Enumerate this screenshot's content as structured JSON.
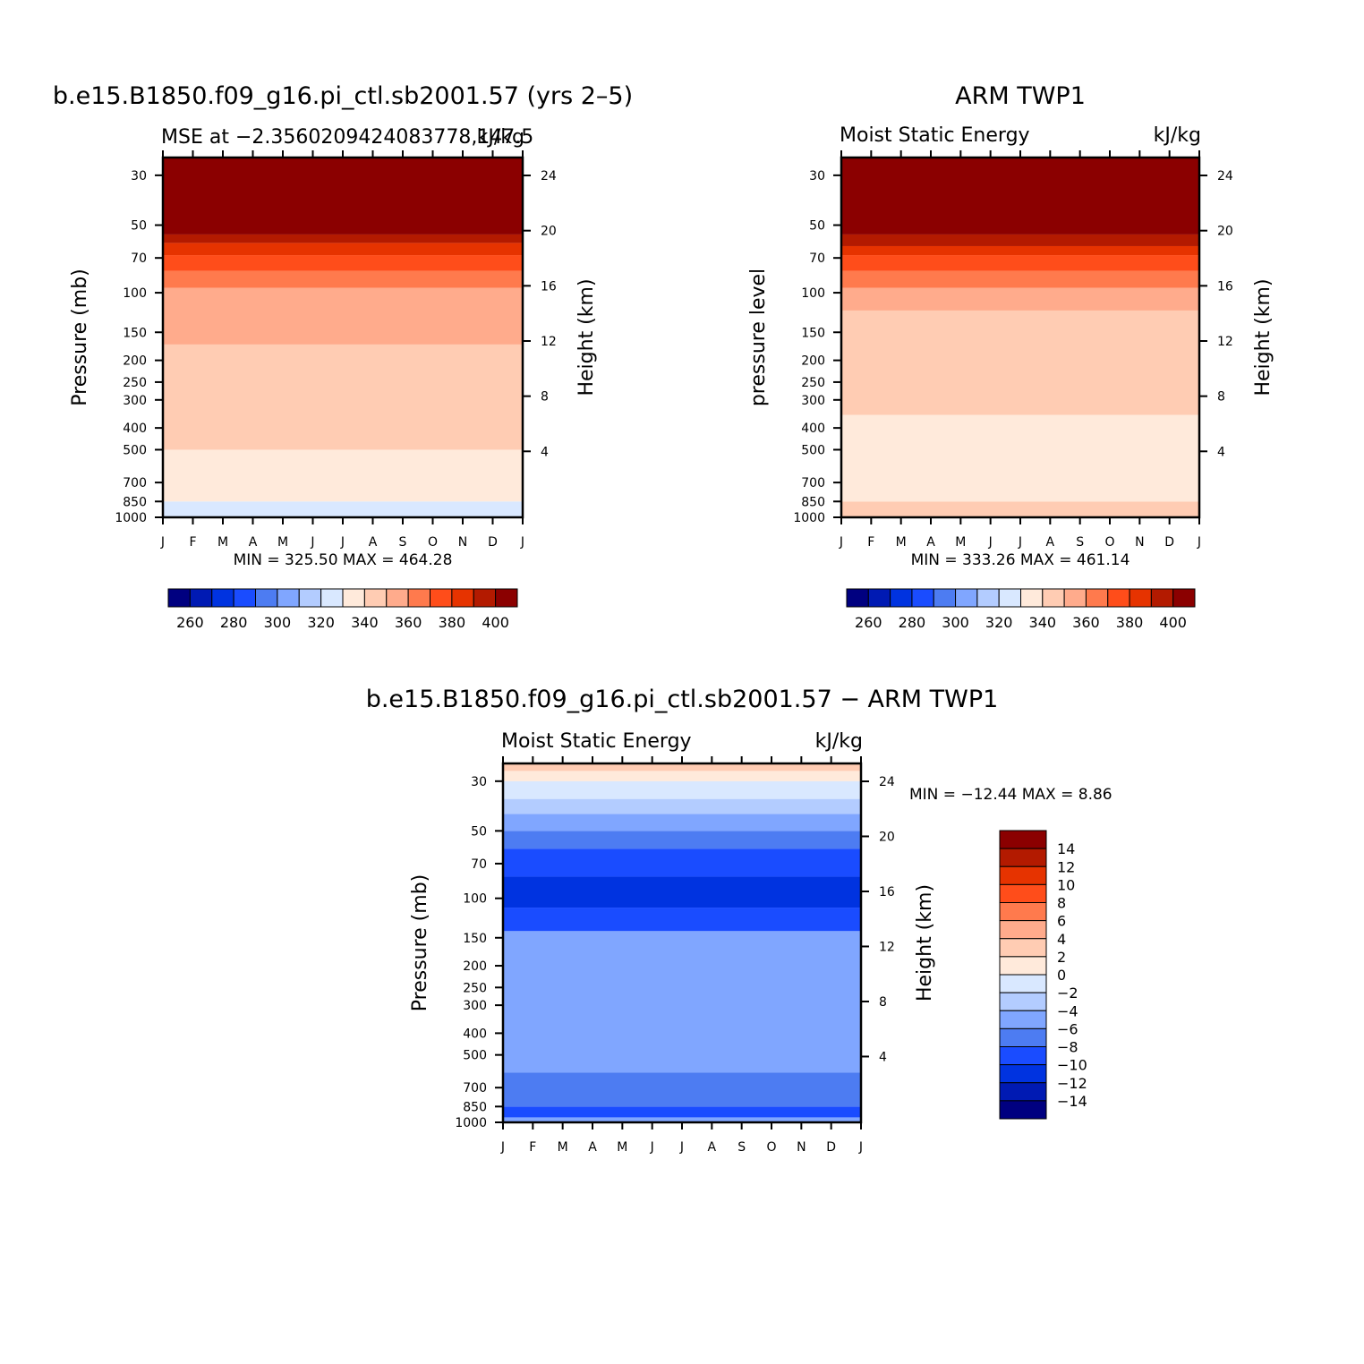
{
  "colors": {
    "palette": [
      "#000080",
      "#001ab3",
      "#0033e0",
      "#1a4cff",
      "#4d7cf2",
      "#80a6ff",
      "#b3ccff",
      "#d9e8ff",
      "#ffeadb",
      "#ffccb3",
      "#ffab8c",
      "#ff7a4d",
      "#ff4d1a",
      "#e63300",
      "#b31a00",
      "#8b0000"
    ]
  },
  "chart_data": [
    {
      "type": "heatmap",
      "id": "p1",
      "title": "b.e15.B1850.f09_g16.pi_ctl.sb2001.57 (yrs 2–5)",
      "subtitle_left": "MSE at −2.3560209424083778,147.5",
      "subtitle_right": "kJ/kg",
      "ylabel_left": "Pressure (mb)",
      "ylabel_right": "Height (km)",
      "x_ticks": [
        "J",
        "F",
        "M",
        "A",
        "M",
        "J",
        "J",
        "A",
        "S",
        "O",
        "N",
        "D",
        "J"
      ],
      "y_ticks_pressure": [
        "30",
        "50",
        "70",
        "100",
        "150",
        "200",
        "250",
        "300",
        "400",
        "500",
        "700",
        "850",
        "1000"
      ],
      "y_ticks_height": [
        "24",
        "20",
        "16",
        "12",
        "8",
        "4"
      ],
      "stats": "MIN = 325.50  MAX = 464.28",
      "min": 325.5,
      "max": 464.28,
      "colorbar_labels": [
        "260",
        "280",
        "300",
        "320",
        "340",
        "360",
        "380",
        "400"
      ],
      "bands": [
        {
          "level": 8,
          "to": "1000"
        },
        {
          "level": 7,
          "to": "850"
        },
        {
          "level": 8,
          "to": "500"
        },
        {
          "level": 9,
          "to": "170"
        },
        {
          "level": 10,
          "to": "95"
        },
        {
          "level": 11,
          "to": "80"
        },
        {
          "level": 12,
          "to": "68"
        },
        {
          "level": 13,
          "to": "60"
        },
        {
          "level": 14,
          "to": "55"
        },
        {
          "level": 15,
          "to": "25"
        }
      ]
    },
    {
      "type": "heatmap",
      "id": "p2",
      "title": "ARM TWP1",
      "subtitle_left": "Moist Static Energy",
      "subtitle_right": "kJ/kg",
      "ylabel_left": "pressure level",
      "ylabel_right": "Height (km)",
      "x_ticks": [
        "J",
        "F",
        "M",
        "A",
        "M",
        "J",
        "J",
        "A",
        "S",
        "O",
        "N",
        "D",
        "J"
      ],
      "y_ticks_pressure": [
        "30",
        "50",
        "70",
        "100",
        "150",
        "200",
        "250",
        "300",
        "400",
        "500",
        "700",
        "850",
        "1000"
      ],
      "y_ticks_height": [
        "24",
        "20",
        "16",
        "12",
        "8",
        "4"
      ],
      "stats": "MIN = 333.26  MAX = 461.14",
      "min": 333.26,
      "max": 461.14,
      "colorbar_labels": [
        "260",
        "280",
        "300",
        "320",
        "340",
        "360",
        "380",
        "400"
      ],
      "bands": [
        {
          "level": 9,
          "to": "850"
        },
        {
          "level": 8,
          "to": "350"
        },
        {
          "level": 9,
          "to": "120"
        },
        {
          "level": 10,
          "to": "95"
        },
        {
          "level": 11,
          "to": "80"
        },
        {
          "level": 12,
          "to": "68"
        },
        {
          "level": 13,
          "to": "62"
        },
        {
          "level": 14,
          "to": "55"
        },
        {
          "level": 15,
          "to": "25"
        }
      ]
    },
    {
      "type": "heatmap",
      "id": "p3",
      "title": "b.e15.B1850.f09_g16.pi_ctl.sb2001.57 − ARM TWP1",
      "subtitle_left": "Moist Static Energy",
      "subtitle_right": "kJ/kg",
      "ylabel_left": "Pressure (mb)",
      "ylabel_right": "Height (km)",
      "x_ticks": [
        "J",
        "F",
        "M",
        "A",
        "M",
        "J",
        "J",
        "A",
        "S",
        "O",
        "N",
        "D",
        "J"
      ],
      "y_ticks_pressure": [
        "30",
        "50",
        "70",
        "100",
        "150",
        "200",
        "250",
        "300",
        "400",
        "500",
        "700",
        "850",
        "1000"
      ],
      "y_ticks_height": [
        "24",
        "20",
        "16",
        "12",
        "8",
        "4"
      ],
      "stats": "MIN = −12.44  MAX =    8.86",
      "min": -12.44,
      "max": 8.86,
      "colorbar_labels": [
        "14",
        "12",
        "10",
        "8",
        "6",
        "4",
        "2",
        "0",
        "−2",
        "−4",
        "−6",
        "−8",
        "−10",
        "−12",
        "−14"
      ],
      "bands": [
        {
          "level": 5,
          "to": "950"
        },
        {
          "level": 3,
          "to": "850"
        },
        {
          "level": 4,
          "to": "600"
        },
        {
          "level": 5,
          "to": "140"
        },
        {
          "level": 3,
          "to": "110"
        },
        {
          "level": 2,
          "to": "80"
        },
        {
          "level": 3,
          "to": "60"
        },
        {
          "level": 4,
          "to": "50"
        },
        {
          "level": 5,
          "to": "42"
        },
        {
          "level": 6,
          "to": "36"
        },
        {
          "level": 7,
          "to": "30"
        },
        {
          "level": 8,
          "to": "27"
        },
        {
          "level": 9,
          "to": "25"
        }
      ]
    }
  ]
}
